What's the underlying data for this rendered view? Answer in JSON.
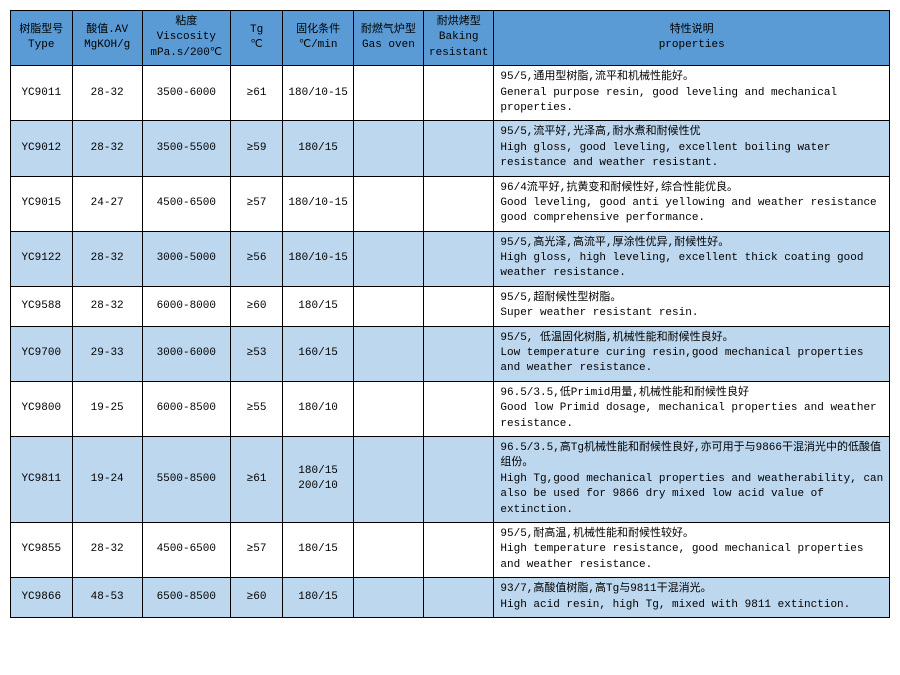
{
  "colors": {
    "header_bg": "#5B9BD5",
    "row_alt_bg": "#BDD7EE",
    "row_bg": "#FFFFFF",
    "border": "#000000",
    "text": "#000000"
  },
  "table": {
    "col_widths_pct": [
      7,
      8,
      10,
      6,
      8,
      8,
      8,
      45
    ],
    "header_fontsize": 11,
    "cell_fontsize": 11,
    "columns": [
      {
        "cn": "树脂型号",
        "en": "Type"
      },
      {
        "cn": "酸值.AV",
        "en": "MgKOH/g"
      },
      {
        "cn": "粘度",
        "en": "Viscosity\nmPa.s/200℃"
      },
      {
        "cn": "Tg",
        "en": "℃"
      },
      {
        "cn": "固化条件",
        "en": "℃/min"
      },
      {
        "cn": "耐燃气炉型",
        "en": "Gas oven"
      },
      {
        "cn": "耐烘烤型",
        "en": "Baking\nresistant"
      },
      {
        "cn": "特性说明",
        "en": "properties"
      }
    ],
    "rows": [
      {
        "type": "YC9011",
        "av": "28-32",
        "visc": "3500-6000",
        "tg": "≥61",
        "cure": "180/10-15",
        "gas": "",
        "bake": "",
        "prop_cn": "95/5,通用型树脂,流平和机械性能好。",
        "prop_en": "General purpose resin, good leveling and mechanical properties."
      },
      {
        "type": "YC9012",
        "av": "28-32",
        "visc": "3500-5500",
        "tg": "≥59",
        "cure": "180/15",
        "gas": "",
        "bake": "",
        "prop_cn": "95/5,流平好,光泽高,耐水煮和耐候性优",
        "prop_en": "High gloss, good leveling, excellent boiling water resistance and weather resistant."
      },
      {
        "type": "YC9015",
        "av": "24-27",
        "visc": "4500-6500",
        "tg": "≥57",
        "cure": "180/10-15",
        "gas": "",
        "bake": "",
        "prop_cn": "96/4流平好,抗黄变和耐候性好,综合性能优良。",
        "prop_en": "Good leveling, good anti yellowing and weather resistance good comprehensive performance."
      },
      {
        "type": "YC9122",
        "av": "28-32",
        "visc": "3000-5000",
        "tg": "≥56",
        "cure": "180/10-15",
        "gas": "",
        "bake": "",
        "prop_cn": "95/5,高光泽,高流平,厚涂性优异,耐候性好。",
        "prop_en": "High gloss, high leveling, excellent thick coating good weather resistance."
      },
      {
        "type": "YC9588",
        "av": "28-32",
        "visc": "6000-8000",
        "tg": "≥60",
        "cure": "180/15",
        "gas": "",
        "bake": "",
        "prop_cn": "95/5,超耐候性型树脂。",
        "prop_en": "Super weather resistant resin."
      },
      {
        "type": "YC9700",
        "av": "29-33",
        "visc": "3000-6000",
        "tg": "≥53",
        "cure": "160/15",
        "gas": "",
        "bake": "",
        "prop_cn": "95/5, 低温固化树脂,机械性能和耐候性良好。",
        "prop_en": "Low temperature curing resin,good mechanical properties and weather resistance."
      },
      {
        "type": "YC9800",
        "av": "19-25",
        "visc": "6000-8500",
        "tg": "≥55",
        "cure": "180/10",
        "gas": "",
        "bake": "",
        "prop_cn": "96.5/3.5,低Primid用量,机械性能和耐候性良好",
        "prop_en": "Good low Primid dosage, mechanical properties and weather resistance."
      },
      {
        "type": "YC9811",
        "av": "19-24",
        "visc": "5500-8500",
        "tg": "≥61",
        "cure": "180/15\n200/10",
        "gas": "",
        "bake": "",
        "prop_cn": "96.5/3.5,高Tg机械性能和耐候性良好,亦可用于与9866干混消光中的低酸值组份。",
        "prop_en": "High Tg,good mechanical properties and weatherability, can also be used for 9866 dry mixed low acid value of extinction."
      },
      {
        "type": "YC9855",
        "av": "28-32",
        "visc": "4500-6500",
        "tg": "≥57",
        "cure": "180/15",
        "gas": "",
        "bake": "",
        "prop_cn": "95/5,耐高温,机械性能和耐候性较好。",
        "prop_en": "High temperature resistance, good mechanical properties and weather resistance."
      },
      {
        "type": "YC9866",
        "av": "48-53",
        "visc": "6500-8500",
        "tg": "≥60",
        "cure": "180/15",
        "gas": "",
        "bake": "",
        "prop_cn": "93/7,高酸值树脂,高Tg与9811干混消光。",
        "prop_en": "High acid resin, high Tg, mixed with 9811 extinction."
      }
    ]
  }
}
